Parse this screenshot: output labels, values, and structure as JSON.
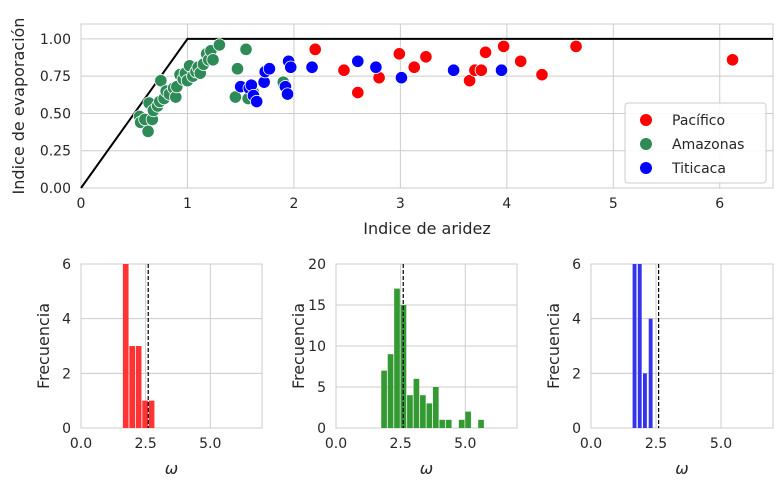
{
  "colors": {
    "pacifico": "#ff0000",
    "amazonas": "#2e8b57",
    "titicaca": "#0000ff",
    "pacifico_bar": "#ff3333",
    "amazonas_bar": "#339933",
    "titicaca_bar": "#3333ee"
  },
  "chart_data": [
    {
      "type": "scatter",
      "xlabel": "Indice de aridez",
      "ylabel": "Indice de evaporación",
      "xlim": [
        0,
        6.5
      ],
      "ylim": [
        0,
        1.1
      ],
      "xticks": [
        0,
        1,
        2,
        3,
        4,
        5,
        6
      ],
      "xtick_labels": [
        "0",
        "1",
        "2",
        "3",
        "4",
        "5",
        "6"
      ],
      "yticks": [
        0,
        0.25,
        0.5,
        0.75,
        1.0
      ],
      "ytick_labels": [
        "0.00",
        "0.25",
        "0.50",
        "0.75",
        "1.00"
      ],
      "grid": true,
      "legend_position": "lower-right",
      "budyko_limit": [
        [
          0,
          0
        ],
        [
          1,
          1
        ],
        [
          6.5,
          1
        ]
      ],
      "series": [
        {
          "name": "Pacífico",
          "color_key": "pacifico",
          "points": [
            [
              2.2,
              0.93
            ],
            [
              2.47,
              0.79
            ],
            [
              2.6,
              0.64
            ],
            [
              2.8,
              0.74
            ],
            [
              2.99,
              0.9
            ],
            [
              3.13,
              0.81
            ],
            [
              3.24,
              0.88
            ],
            [
              3.65,
              0.72
            ],
            [
              3.7,
              0.79
            ],
            [
              3.76,
              0.79
            ],
            [
              3.8,
              0.91
            ],
            [
              3.97,
              0.95
            ],
            [
              4.13,
              0.85
            ],
            [
              4.33,
              0.76
            ],
            [
              4.65,
              0.95
            ],
            [
              6.12,
              0.86
            ]
          ]
        },
        {
          "name": "Amazonas",
          "color_key": "amazonas",
          "points": [
            [
              0.55,
              0.48
            ],
            [
              0.56,
              0.44
            ],
            [
              0.6,
              0.46
            ],
            [
              0.63,
              0.38
            ],
            [
              0.64,
              0.57
            ],
            [
              0.67,
              0.46
            ],
            [
              0.68,
              0.52
            ],
            [
              0.72,
              0.55
            ],
            [
              0.74,
              0.58
            ],
            [
              0.75,
              0.72
            ],
            [
              0.78,
              0.6
            ],
            [
              0.8,
              0.65
            ],
            [
              0.83,
              0.63
            ],
            [
              0.87,
              0.67
            ],
            [
              0.89,
              0.61
            ],
            [
              0.9,
              0.68
            ],
            [
              0.93,
              0.76
            ],
            [
              0.96,
              0.73
            ],
            [
              0.98,
              0.77
            ],
            [
              1.0,
              0.72
            ],
            [
              1.02,
              0.82
            ],
            [
              1.05,
              0.75
            ],
            [
              1.08,
              0.78
            ],
            [
              1.1,
              0.81
            ],
            [
              1.12,
              0.77
            ],
            [
              1.15,
              0.83
            ],
            [
              1.18,
              0.9
            ],
            [
              1.2,
              0.86
            ],
            [
              1.22,
              0.92
            ],
            [
              1.24,
              0.86
            ],
            [
              1.3,
              0.96
            ],
            [
              1.45,
              0.61
            ],
            [
              1.47,
              0.8
            ],
            [
              1.55,
              0.93
            ],
            [
              1.57,
              0.6
            ],
            [
              1.62,
              0.64
            ],
            [
              1.9,
              0.71
            ]
          ]
        },
        {
          "name": "Titicaca",
          "color_key": "titicaca",
          "points": [
            [
              1.5,
              0.68
            ],
            [
              1.58,
              0.67
            ],
            [
              1.6,
              0.69
            ],
            [
              1.62,
              0.62
            ],
            [
              1.65,
              0.58
            ],
            [
              1.72,
              0.71
            ],
            [
              1.73,
              0.78
            ],
            [
              1.77,
              0.8
            ],
            [
              1.92,
              0.68
            ],
            [
              1.94,
              0.63
            ],
            [
              1.95,
              0.85
            ],
            [
              1.97,
              0.81
            ],
            [
              2.17,
              0.81
            ],
            [
              2.6,
              0.85
            ],
            [
              2.77,
              0.81
            ],
            [
              3.01,
              0.74
            ],
            [
              3.5,
              0.79
            ],
            [
              3.95,
              0.79
            ]
          ]
        }
      ]
    },
    {
      "type": "bar",
      "xlabel": "ω",
      "ylabel": "Frecuencia",
      "xlim": [
        0,
        7
      ],
      "ylim": [
        0,
        6
      ],
      "xticks": [
        0,
        2.5,
        5
      ],
      "xtick_labels": [
        "0.0",
        "2.5",
        "5.0"
      ],
      "yticks": [
        0,
        2,
        4,
        6
      ],
      "ytick_labels": [
        "0",
        "2",
        "4",
        "6"
      ],
      "color_key": "pacifico_bar",
      "bin_width": 0.25,
      "bins": [
        [
          1.62,
          6
        ],
        [
          1.87,
          3
        ],
        [
          2.12,
          3
        ],
        [
          2.37,
          1
        ],
        [
          2.62,
          1
        ]
      ],
      "reference_line": 2.6
    },
    {
      "type": "bar",
      "xlabel": "ω",
      "ylabel": "Frecuencia",
      "xlim": [
        0,
        7
      ],
      "ylim": [
        0,
        20
      ],
      "xticks": [
        0,
        2.5,
        5
      ],
      "xtick_labels": [
        "0.0",
        "2.5",
        "5.0"
      ],
      "yticks": [
        0,
        5,
        10,
        15,
        20
      ],
      "ytick_labels": [
        "0",
        "5",
        "10",
        "15",
        "20"
      ],
      "color_key": "amazonas_bar",
      "bin_width": 0.25,
      "bins": [
        [
          1.75,
          7
        ],
        [
          2.0,
          9
        ],
        [
          2.25,
          17
        ],
        [
          2.5,
          15
        ],
        [
          2.75,
          4
        ],
        [
          3.0,
          6
        ],
        [
          3.25,
          4
        ],
        [
          3.5,
          3
        ],
        [
          3.75,
          5
        ],
        [
          4.0,
          1
        ],
        [
          4.25,
          1
        ],
        [
          4.5,
          0
        ],
        [
          4.75,
          1
        ],
        [
          5.0,
          2
        ],
        [
          5.25,
          0
        ],
        [
          5.5,
          1
        ]
      ],
      "reference_line": 2.6
    },
    {
      "type": "bar",
      "xlabel": "ω",
      "ylabel": "Frecuencia",
      "xlim": [
        0,
        7
      ],
      "ylim": [
        0,
        6
      ],
      "xticks": [
        0,
        2.5,
        5
      ],
      "xtick_labels": [
        "0.0",
        "2.5",
        "5.0"
      ],
      "yticks": [
        0,
        2,
        4,
        6
      ],
      "ytick_labels": [
        "0",
        "2",
        "4",
        "6"
      ],
      "color_key": "titicaca_bar",
      "bin_width": 0.18,
      "bins": [
        [
          1.6,
          6
        ],
        [
          1.8,
          6
        ],
        [
          2.0,
          2
        ],
        [
          2.22,
          4
        ]
      ],
      "reference_line": 2.6
    }
  ]
}
